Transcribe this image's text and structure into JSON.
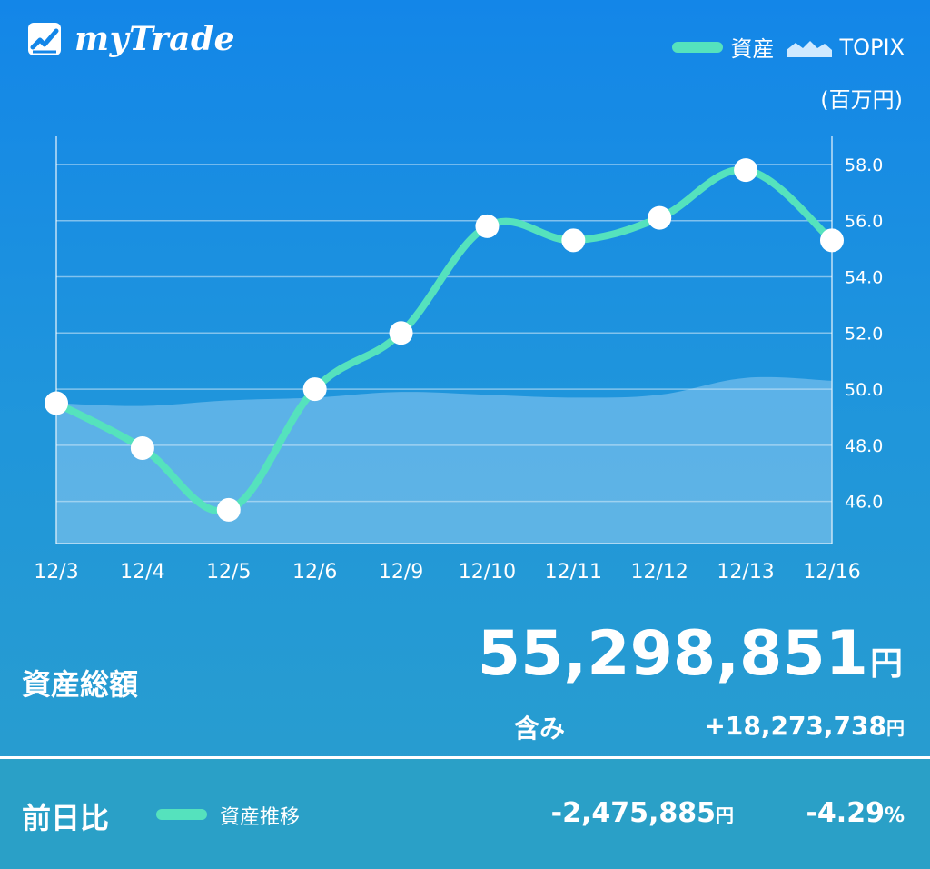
{
  "header": {
    "app_name": "myTrade",
    "logo_icon": "chart-logo-icon",
    "legend": [
      {
        "label": "資産",
        "icon": "line-legend-icon",
        "color": "#55e2bd"
      },
      {
        "label": "TOPIX",
        "icon": "area-legend-icon",
        "color": "#cfe9ff"
      }
    ],
    "unit": "(百万円)"
  },
  "chart_data": {
    "type": "line",
    "categories": [
      "12/3",
      "12/4",
      "12/5",
      "12/6",
      "12/9",
      "12/10",
      "12/11",
      "12/12",
      "12/13",
      "12/16"
    ],
    "series": [
      {
        "name": "資産",
        "kind": "line",
        "color": "#55e2bd",
        "values": [
          49.5,
          47.9,
          45.7,
          50.0,
          52.0,
          55.8,
          55.3,
          56.1,
          57.8,
          55.3
        ]
      },
      {
        "name": "TOPIX",
        "kind": "area",
        "color": "#cfe9ff",
        "values": [
          49.5,
          49.4,
          49.6,
          49.7,
          49.9,
          49.8,
          49.7,
          49.8,
          50.4,
          50.3
        ]
      }
    ],
    "y_ticks": [
      "46.0",
      "48.0",
      "50.0",
      "52.0",
      "54.0",
      "56.0",
      "58.0"
    ],
    "ylim": [
      44.5,
      59.0
    ],
    "y_axis_position": "right",
    "grid": true
  },
  "summary": {
    "total_label": "資産総額",
    "total_value": "55,298,851",
    "total_unit": "円",
    "include_label": "含み",
    "include_value": "+18,273,738",
    "include_unit": "円"
  },
  "footer": {
    "label": "前日比",
    "series_label": "資産推移",
    "change_value": "-2,475,885",
    "change_unit": "円",
    "change_pct": "-4.29",
    "pct_unit": "%"
  }
}
